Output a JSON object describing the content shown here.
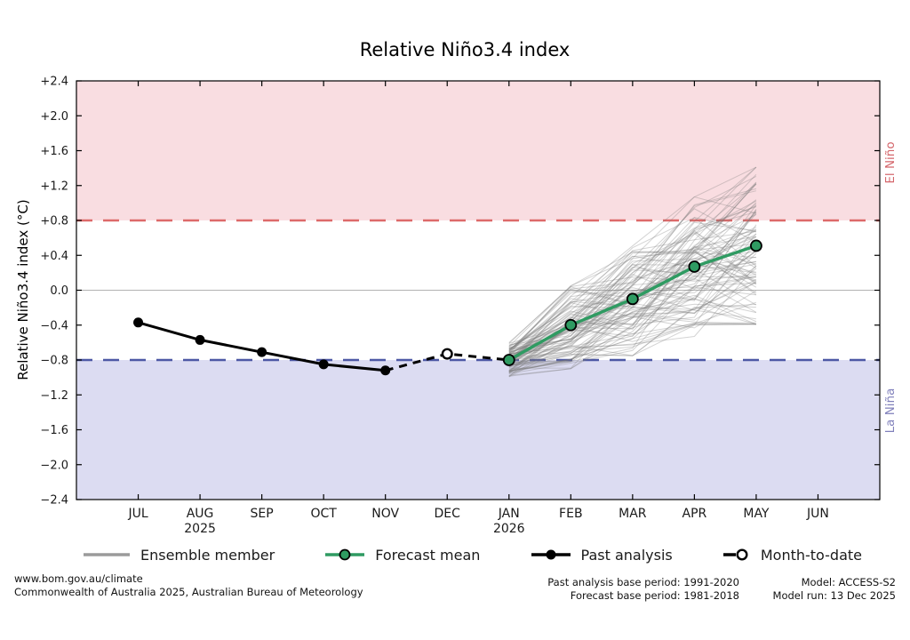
{
  "title": "Relative Niño3.4 index",
  "chart_data": {
    "type": "line",
    "title": "Relative Niño3.4 index",
    "ylabel": "Relative Niño3.4 index (°C)",
    "x_categories": [
      "JUL",
      "AUG",
      "SEP",
      "OCT",
      "NOV",
      "DEC",
      "JAN",
      "FEB",
      "MAR",
      "APR",
      "MAY",
      "JUN"
    ],
    "x_year_labels": [
      {
        "index": 1,
        "label": "2025"
      },
      {
        "index": 6,
        "label": "2026"
      }
    ],
    "ylim": [
      -2.4,
      2.4
    ],
    "ytick_step": 0.4,
    "yticks": [
      {
        "value": 2.4,
        "label": "+2.4"
      },
      {
        "value": 2.0,
        "label": "+2.0"
      },
      {
        "value": 1.6,
        "label": "+1.6"
      },
      {
        "value": 1.2,
        "label": "+1.2"
      },
      {
        "value": 0.8,
        "label": "+0.8"
      },
      {
        "value": 0.4,
        "label": "+0.4"
      },
      {
        "value": 0.0,
        "label": "0.0"
      },
      {
        "value": -0.4,
        "label": "−0.4"
      },
      {
        "value": -0.8,
        "label": "−0.8"
      },
      {
        "value": -1.2,
        "label": "−1.2"
      },
      {
        "value": -1.6,
        "label": "−1.6"
      },
      {
        "value": -2.0,
        "label": "−2.0"
      },
      {
        "value": -2.4,
        "label": "−2.4"
      }
    ],
    "grid": "zero-line-only",
    "zero_line_color": "#b3b3b3",
    "bands": {
      "el_nino": {
        "threshold": 0.8,
        "label": "El Niño",
        "fill": "#f9dde1",
        "line_color": "#dd6a6a",
        "label_color": "#d4666b"
      },
      "la_nina": {
        "threshold": -0.8,
        "label": "La Niña",
        "fill": "#dcdcf2",
        "line_color": "#4d58a5",
        "label_color": "#8080bb"
      }
    },
    "past_analysis": {
      "name": "Past analysis",
      "color": "#000000",
      "indices": [
        0,
        1,
        2,
        3,
        4
      ],
      "values": [
        -0.37,
        -0.57,
        -0.71,
        -0.85,
        -0.92
      ]
    },
    "dashed_connector": {
      "style": "dashed",
      "color": "#000000",
      "indices": [
        4,
        5,
        6
      ],
      "values": [
        -0.92,
        -0.73,
        -0.8
      ]
    },
    "month_to_date": {
      "name": "Month-to-date",
      "color": "#000000",
      "index": 5,
      "value": -0.73
    },
    "forecast_mean": {
      "name": "Forecast mean",
      "color": "#2f9b62",
      "indices": [
        6,
        7,
        8,
        9,
        10
      ],
      "values": [
        -0.8,
        -0.4,
        -0.1,
        0.27,
        0.51
      ]
    },
    "ensemble": {
      "name": "Ensemble member",
      "count": 96,
      "seed": 1337,
      "start_index": 6,
      "color": "rgba(120,120,120,0.32)",
      "means": [
        -0.8,
        -0.4,
        -0.1,
        0.27,
        0.51
      ],
      "spreads": [
        0.2,
        0.5,
        0.65,
        0.8,
        0.9
      ],
      "min": [
        -1.18,
        -1.35,
        -1.15,
        -0.75,
        -0.5
      ],
      "max": [
        -0.5,
        0.05,
        0.9,
        1.55,
        1.9
      ]
    }
  },
  "legend": {
    "items": [
      {
        "label": "Ensemble member"
      },
      {
        "label": "Forecast mean"
      },
      {
        "label": "Past analysis"
      },
      {
        "label": "Month-to-date"
      }
    ]
  },
  "footer": {
    "left_lines": [
      "www.bom.gov.au/climate",
      "Commonwealth of Australia 2025, Australian Bureau of Meteorology"
    ],
    "center_lines": [
      "Past analysis base period: 1991-2020",
      "Forecast base period: 1981-2018"
    ],
    "right_lines": [
      "Model: ACCESS-S2",
      "Model run: 13 Dec 2025"
    ]
  }
}
